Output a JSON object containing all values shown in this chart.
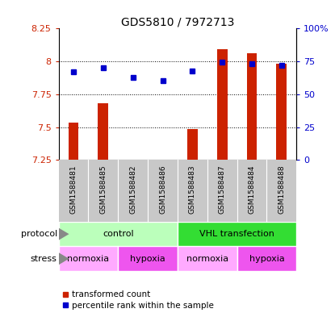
{
  "title": "GDS5810 / 7972713",
  "samples": [
    "GSM1588481",
    "GSM1588485",
    "GSM1588482",
    "GSM1588486",
    "GSM1588483",
    "GSM1588487",
    "GSM1588484",
    "GSM1588488"
  ],
  "bar_values": [
    7.535,
    7.68,
    7.255,
    7.255,
    7.485,
    8.09,
    8.06,
    7.98
  ],
  "bar_base": 7.25,
  "blue_values": [
    7.92,
    7.95,
    7.88,
    7.855,
    7.93,
    7.995,
    7.98,
    7.97
  ],
  "ylim_left": [
    7.25,
    8.25
  ],
  "ylim_right": [
    0,
    100
  ],
  "yticks_left": [
    7.25,
    7.5,
    7.75,
    8.0,
    8.25
  ],
  "yticks_right": [
    0,
    25,
    50,
    75,
    100
  ],
  "ytick_labels_left": [
    "7.25",
    "7.5",
    "7.75",
    "8",
    "8.25"
  ],
  "ytick_labels_right": [
    "0",
    "25",
    "50",
    "75",
    "100%"
  ],
  "bar_color": "#cc2200",
  "blue_color": "#0000cc",
  "protocol_groups": [
    {
      "label": "control",
      "start": 0,
      "end": 4,
      "color": "#bbffbb"
    },
    {
      "label": "VHL transfection",
      "start": 4,
      "end": 8,
      "color": "#33dd33"
    }
  ],
  "stress_groups": [
    {
      "label": "normoxia",
      "start": 0,
      "end": 2,
      "color": "#ffaaff"
    },
    {
      "label": "hypoxia",
      "start": 2,
      "end": 4,
      "color": "#ee55ee"
    },
    {
      "label": "normoxia",
      "start": 4,
      "end": 6,
      "color": "#ffaaff"
    },
    {
      "label": "hypoxia",
      "start": 6,
      "end": 8,
      "color": "#ee55ee"
    }
  ],
  "bg_color": "#ffffff",
  "sample_bg_color": "#c8c8c8",
  "grid_color": "#000000",
  "left_tick_color": "#cc2200",
  "right_tick_color": "#0000cc"
}
